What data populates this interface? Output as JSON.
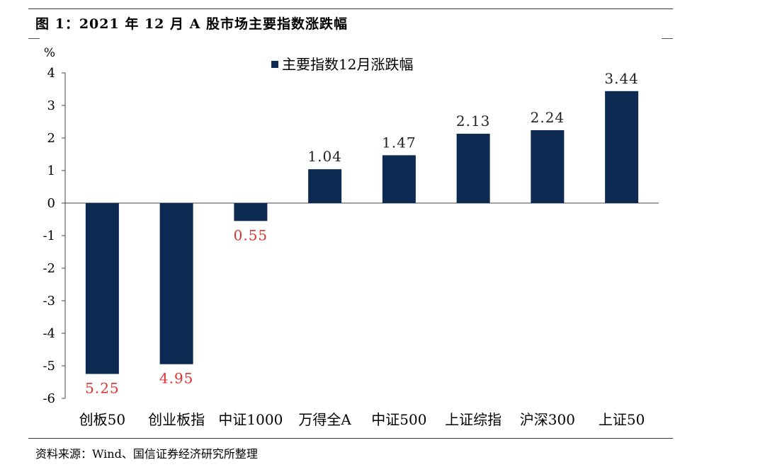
{
  "figure": {
    "title": "图 1：2021 年 12 月 A 股市场主要指数涨跌幅",
    "source": "资料来源：Wind、国信证券经济研究所整理"
  },
  "chart_data": {
    "type": "bar",
    "ylabel": "%",
    "ylim": [
      -6,
      4
    ],
    "yticks": [
      4,
      3,
      2,
      1,
      0,
      -1,
      -2,
      -3,
      -4,
      -5,
      -6
    ],
    "ytick_labels": [
      "4",
      "3",
      "2",
      "1",
      "0",
      "-1",
      "-2",
      "-3",
      "-4",
      "-5",
      "-6"
    ],
    "categories": [
      "创板50",
      "创业板指",
      "中证1000",
      "万得全A",
      "中证500",
      "上证综指",
      "沪深300",
      "上证50"
    ],
    "series": [
      {
        "name": "主要指数12月涨跌幅",
        "values": [
          -5.25,
          -4.95,
          -0.55,
          1.04,
          1.47,
          2.13,
          2.24,
          3.44
        ]
      }
    ],
    "data_labels": [
      "5.25",
      "4.95",
      "0.55",
      "1.04",
      "1.47",
      "2.13",
      "2.24",
      "3.44"
    ],
    "colors": {
      "bar": "#0d2a52",
      "positive_label": "#222222",
      "negative_label": "#e03030"
    },
    "legend_position": "top-center",
    "grid": false
  }
}
